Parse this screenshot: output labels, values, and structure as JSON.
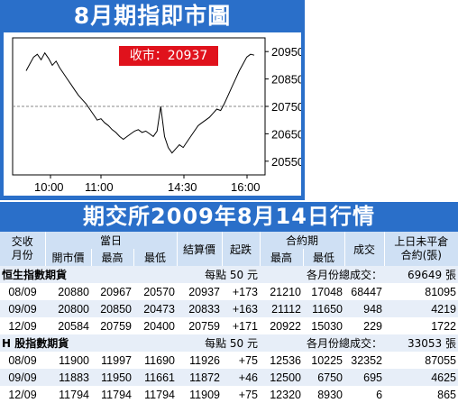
{
  "chart": {
    "title": "8月期指即市圖",
    "close_label": "收市：20937",
    "y_ticks": [
      "20950",
      "20850",
      "20750",
      "20650",
      "20550"
    ],
    "x_ticks": [
      "10:00",
      "11:00",
      "14:30",
      "16:00"
    ],
    "colors": {
      "panel": "#2a6fc9",
      "line": "#000000",
      "badge": "#e0121c"
    }
  },
  "chart_data": {
    "type": "line",
    "title": "8月期指即市圖",
    "xlabel": "",
    "ylabel": "",
    "ylim": [
      20500,
      21000
    ],
    "x_ticks": [
      "10:00",
      "11:00",
      "14:30",
      "16:00"
    ],
    "annotation": "收市：20937",
    "series": [
      {
        "values": [
          20880,
          20905,
          20930,
          20940,
          20920,
          20945,
          20925,
          20900,
          20915,
          20890,
          20870,
          20850,
          20830,
          20810,
          20790,
          20775,
          20760,
          20740,
          20720,
          20700,
          20705,
          20690,
          20680,
          20665,
          20655,
          20640,
          20630,
          20640,
          20650,
          20660,
          20665,
          20655,
          20660,
          20650,
          20640,
          20660,
          20750,
          20640,
          20600,
          20580,
          20595,
          20610,
          20600,
          20620,
          20640,
          20660,
          20680,
          20690,
          20700,
          20710,
          20725,
          20740,
          20735,
          20760,
          20790,
          20820,
          20850,
          20880,
          20905,
          20930,
          20940,
          20937
        ]
      }
    ]
  },
  "table": {
    "title": "期交所2009年8月14日行情",
    "headers": {
      "month": "交收\n月份",
      "day_group": "當日",
      "open": "開市價",
      "high": "最高",
      "low": "最低",
      "settle": "結算價",
      "change": "起跌",
      "contract_group": "合約期",
      "c_high": "最高",
      "c_low": "最低",
      "volume": "成交",
      "oi": "上日未平倉\n合約(張)"
    },
    "sections": [
      {
        "name": "恒生指數期貨",
        "per_point": "每點 50 元",
        "total_label": "各月份總成交：",
        "total": "69649 張",
        "rows": [
          [
            "08/09",
            "20880",
            "20967",
            "20570",
            "20937",
            "+173",
            "21210",
            "17048",
            "68447",
            "81095"
          ],
          [
            "09/09",
            "20800",
            "20850",
            "20473",
            "20833",
            "+163",
            "21112",
            "11650",
            "948",
            "4219"
          ],
          [
            "12/09",
            "20584",
            "20759",
            "20400",
            "20759",
            "+171",
            "20922",
            "15030",
            "229",
            "1722"
          ]
        ]
      },
      {
        "name": "H 股指數期貨",
        "per_point": "每點 50 元",
        "total_label": "各月份總成交：",
        "total": "33053 張",
        "rows": [
          [
            "08/09",
            "11900",
            "11997",
            "11690",
            "11926",
            "+75",
            "12536",
            "10225",
            "32352",
            "87055"
          ],
          [
            "09/09",
            "11883",
            "11950",
            "11661",
            "11872",
            "+46",
            "12500",
            "6750",
            "695",
            "4625"
          ],
          [
            "12/09",
            "11794",
            "11794",
            "11794",
            "11909",
            "+75",
            "12320",
            "8930",
            "6",
            "865"
          ]
        ]
      }
    ]
  }
}
